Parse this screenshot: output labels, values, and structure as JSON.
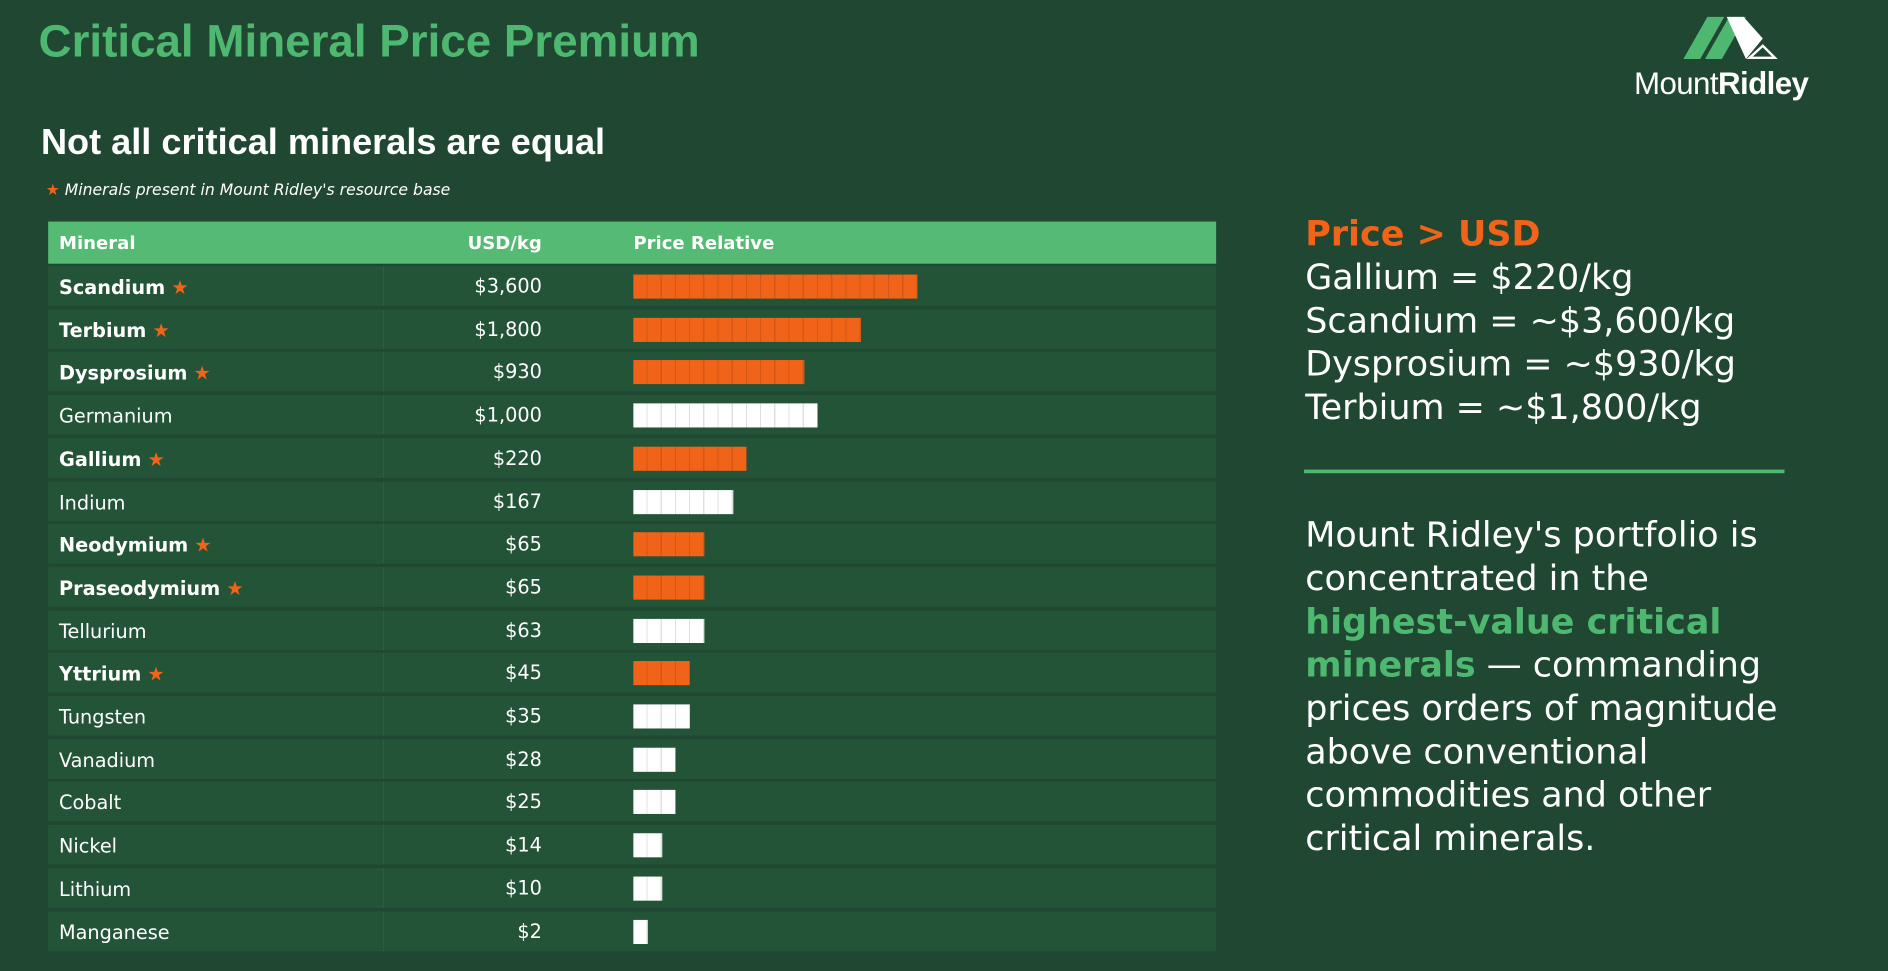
{
  "header": {
    "title": "Critical Mineral Price Premium",
    "subtitle": "Not all critical minerals are equal",
    "note": "Minerals present in Mount Ridley's resource base"
  },
  "logo": {
    "word1": "Mount",
    "word2": "Ridley"
  },
  "table": {
    "columns": [
      "Mineral",
      "USD/kg",
      "Price Relative"
    ],
    "rows": [
      {
        "mineral": "Scandium",
        "price": "$3,600",
        "blocks": 20,
        "in_resource": true
      },
      {
        "mineral": "Terbium",
        "price": "$1,800",
        "blocks": 16,
        "in_resource": true
      },
      {
        "mineral": "Dysprosium",
        "price": "$930",
        "blocks": 12,
        "in_resource": true
      },
      {
        "mineral": "Germanium",
        "price": "$1,000",
        "blocks": 13,
        "in_resource": false
      },
      {
        "mineral": "Gallium",
        "price": "$220",
        "blocks": 8,
        "in_resource": true
      },
      {
        "mineral": "Indium",
        "price": "$167",
        "blocks": 7,
        "in_resource": false
      },
      {
        "mineral": "Neodymium",
        "price": "$65",
        "blocks": 5,
        "in_resource": true
      },
      {
        "mineral": "Praseodymium",
        "price": "$65",
        "blocks": 5,
        "in_resource": true
      },
      {
        "mineral": "Tellurium",
        "price": "$63",
        "blocks": 5,
        "in_resource": false
      },
      {
        "mineral": "Yttrium",
        "price": "$45",
        "blocks": 4,
        "in_resource": true
      },
      {
        "mineral": "Tungsten",
        "price": "$35",
        "blocks": 4,
        "in_resource": false
      },
      {
        "mineral": "Vanadium",
        "price": "$28",
        "blocks": 3,
        "in_resource": false
      },
      {
        "mineral": "Cobalt",
        "price": "$25",
        "blocks": 3,
        "in_resource": false
      },
      {
        "mineral": "Nickel",
        "price": "$14",
        "blocks": 2,
        "in_resource": false
      },
      {
        "mineral": "Lithium",
        "price": "$10",
        "blocks": 2,
        "in_resource": false
      },
      {
        "mineral": "Manganese",
        "price": "$2",
        "blocks": 1,
        "in_resource": false
      }
    ]
  },
  "side": {
    "heading": "Price > USD",
    "lines": [
      "Gallium = $220/kg",
      "Scandium = ~$3,600/kg",
      "Dysprosium = ~$930/kg",
      "Terbium = ~$1,800/kg"
    ],
    "paragraph": [
      "Mount Ridley's portfolio is concentrated in the",
      "highest-value critical minerals",
      "— commanding prices orders of magnitude above conventional commodities and other critical minerals."
    ]
  }
}
